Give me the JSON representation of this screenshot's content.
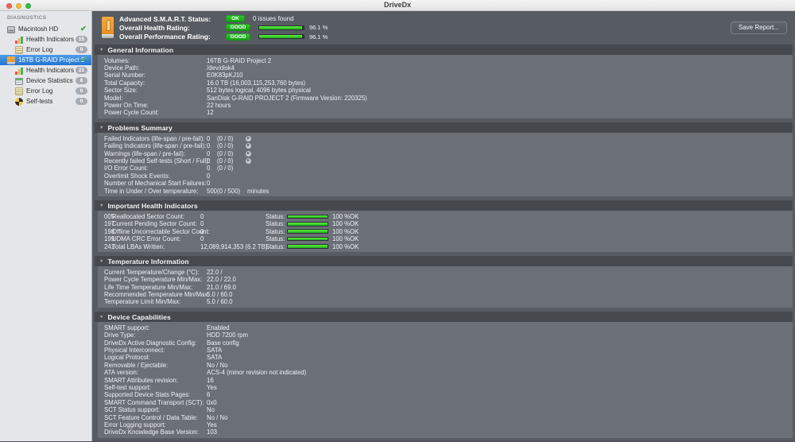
{
  "window": {
    "title": "DriveDx"
  },
  "sidebar": {
    "section_label": "DIAGNOSTICS",
    "items": [
      {
        "label": "Macintosh HD",
        "icon": "internal-drive-icon",
        "level": 0,
        "check": true,
        "selected": false
      },
      {
        "label": "Health Indicators",
        "icon": "health-bars-icon",
        "level": 1,
        "badge": "15"
      },
      {
        "label": "Error Log",
        "icon": "error-log-icon",
        "level": 1,
        "badge": "0"
      },
      {
        "label": "16TB G-RAID Project 2",
        "icon": "external-drive-icon",
        "level": 0,
        "check": true,
        "selected": true
      },
      {
        "label": "Health Indicators",
        "icon": "health-bars-icon",
        "level": 1,
        "badge": "21"
      },
      {
        "label": "Device Statistics",
        "icon": "device-stats-icon",
        "level": 1,
        "badge": "6"
      },
      {
        "label": "Error Log",
        "icon": "error-log-icon",
        "level": 1,
        "badge": "0"
      },
      {
        "label": "Self-tests",
        "icon": "pie-chart-icon",
        "level": 1,
        "badge": "0"
      }
    ]
  },
  "header": {
    "rows": [
      {
        "label": "Advanced S.M.A.R.T. Status:",
        "badge": "OK",
        "note": "0 issues found"
      },
      {
        "label": "Overall Health Rating:",
        "badge": "GOOD",
        "percent": 96.1,
        "value": "96.1 %"
      },
      {
        "label": "Overall Performance Rating:",
        "badge": "GOOD",
        "percent": 96.1,
        "value": "96.1 %"
      }
    ],
    "save_button": "Save Report..."
  },
  "sections": [
    {
      "title": "General Information",
      "type": "kv",
      "rows": [
        {
          "label": "Volumes:",
          "value": "16TB G-RAID Project 2"
        },
        {
          "label": "Device Path:",
          "value": "/dev/disk4"
        },
        {
          "label": "Serial Number:",
          "value": "E0K83pKJ10"
        },
        {
          "label": "Total Capacity:",
          "value": "16.0 TB (16,003,115,253,760 bytes)"
        },
        {
          "label": "Sector Size:",
          "value": "512 bytes logical, 4096 bytes physical"
        },
        {
          "label": "Model:",
          "value": "SanDisk G-RAID PROJECT 2  (Firmware Version: 220325)"
        },
        {
          "label": "Power On Time:",
          "value": "22 hours"
        },
        {
          "label": "Power Cycle Count:",
          "value": "12"
        }
      ]
    },
    {
      "title": "Problems Summary",
      "type": "problems",
      "rows": [
        {
          "label": "Failed Indicators (life-span / pre-fail):",
          "value": "0",
          "detail": "(0 / 0)",
          "arrow": true
        },
        {
          "label": "Failing Indicators (life-span / pre-fail):",
          "value": "0",
          "detail": "(0 / 0)",
          "arrow": true
        },
        {
          "label": "Warnings (life-span / pre-fail):",
          "value": "0",
          "detail": "(0 / 0)",
          "arrow": true
        },
        {
          "label": "Recently failed Self-tests (Short / Full):",
          "value": "0",
          "detail": "(0 / 0)",
          "arrow": true
        },
        {
          "label": "I/O Error Count:",
          "value": "0",
          "detail": "(0 / 0)"
        },
        {
          "label": "Overlimit Shock Events:",
          "value": "0"
        },
        {
          "label": "Number of Mechanical Start Failures:",
          "value": "0"
        },
        {
          "label": "Time in Under / Over temperature:",
          "value": "500",
          "detail": "(0 / 500)",
          "unit": "minutes"
        }
      ]
    },
    {
      "title": "Important Health Indicators",
      "type": "health",
      "status_label": "Status:",
      "rows": [
        {
          "id": "005",
          "label": "Reallocated Sector Count:",
          "value": "0",
          "percent": 100,
          "percent_label": "100 %",
          "status": "OK"
        },
        {
          "id": "197",
          "label": "Current Pending Sector Count:",
          "value": "0",
          "percent": 100,
          "percent_label": "100 %",
          "status": "OK"
        },
        {
          "id": "198",
          "label": "Offline Uncorrectable Sector Count:",
          "value": "0",
          "percent": 100,
          "percent_label": "100 %",
          "status": "OK"
        },
        {
          "id": "199",
          "label": "UDMA CRC Error Count:",
          "value": "0",
          "percent": 100,
          "percent_label": "100 %",
          "status": "OK"
        },
        {
          "id": "241",
          "label": "Total LBAs Written:",
          "value": "12,089,914,353 (6.2 TB)",
          "percent": 100,
          "percent_label": "100 %",
          "status": "OK"
        }
      ]
    },
    {
      "title": "Temperature Information",
      "type": "kv",
      "rows": [
        {
          "label": "Current Temperature/Change (°C):",
          "value": "22.0 /"
        },
        {
          "label": "Power Cycle Temperature Min/Max:",
          "value": "22.0 / 22.0"
        },
        {
          "label": "Life Time Temperature Min/Max:",
          "value": "21.0 / 69.0"
        },
        {
          "label": "Recommended Temperature Min/Max:",
          "value": "5.0  / 60.0"
        },
        {
          "label": "Temperature Limit Min/Max:",
          "value": "5.0  / 60.0"
        }
      ]
    },
    {
      "title": "Device Capabilities",
      "type": "kv",
      "rows": [
        {
          "label": "SMART support:",
          "value": "Enabled"
        },
        {
          "label": "Drive Type:",
          "value": "HDD 7200 rpm"
        },
        {
          "label": "DriveDx Active Diagnostic Config:",
          "value": "Base config"
        },
        {
          "label": "Physical Interconnect:",
          "value": "SATA"
        },
        {
          "label": "Logical Protocol:",
          "value": "SATA"
        },
        {
          "label": "Removable / Ejectable:",
          "value": "No / No"
        },
        {
          "label": "ATA version:",
          "value": "ACS-4 (minor revision not indicated)"
        },
        {
          "label": "SMART Attributes revision:",
          "value": "16"
        },
        {
          "label": "Self-test support:",
          "value": "Yes"
        },
        {
          "label": "Supported Device Stats Pages:",
          "value": "6"
        },
        {
          "label": "SMART Command Transport (SCT):",
          "value": "0x0"
        },
        {
          "label": "SCT Status support:",
          "value": "No"
        },
        {
          "label": "SCT Feature Control / Data Table:",
          "value": "No / No"
        },
        {
          "label": "Error Logging support:",
          "value": "Yes"
        },
        {
          "label": "DriveDx Knowledge Base Version:",
          "value": "103"
        }
      ]
    }
  ],
  "colors": {
    "badge_green": "#1fae1f",
    "bar_green": "#3bd42e",
    "selection_blue": "#2e7dd8",
    "panel_dark": "#575c63",
    "section_header": "#45484d",
    "section_body": "#6b7077"
  }
}
